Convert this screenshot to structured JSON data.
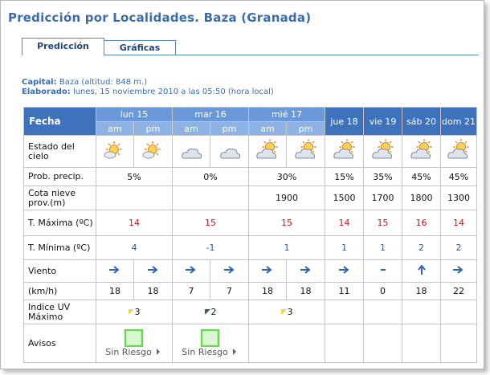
{
  "header": {
    "title": "Predicción por Localidades. Baza (Granada)",
    "tabs": [
      "Predicción",
      "Gráficas"
    ]
  },
  "info": {
    "capital_label": "Capital:",
    "capital": "Baza (altitud: 848 m.)",
    "elaborado_label": "Elaborado:",
    "elaborado": "lunes, 15 noviembre 2010 a las 05:50 (hora local)"
  },
  "table": {
    "corner": "Fecha",
    "days": [
      {
        "label": "lun 15",
        "periods": [
          "am",
          "pm"
        ]
      },
      {
        "label": "mar 16",
        "periods": [
          "am",
          "pm"
        ]
      },
      {
        "label": "mié 17",
        "periods": [
          "am",
          "pm"
        ]
      },
      {
        "label": "jue 18"
      },
      {
        "label": "vie 19"
      },
      {
        "label": "sáb 20"
      },
      {
        "label": "dom 21"
      }
    ],
    "rows": [
      {
        "label": "Estado del cielo"
      },
      {
        "label": "Prob. precip.",
        "cells": [
          "5%",
          "0%",
          "30%",
          "15%",
          "35%",
          "45%",
          "45%"
        ]
      },
      {
        "label": "Cota nieve prov.(m)",
        "cells": [
          null,
          null,
          1900,
          1500,
          1700,
          1800,
          1300
        ]
      },
      {
        "label": "T. Máxima (ºC)",
        "cells": [
          14,
          15,
          15,
          14,
          15,
          16,
          14
        ]
      },
      {
        "label": "T. Mínima (ºC)",
        "cells": [
          4,
          -1,
          1,
          1,
          1,
          2,
          2
        ]
      },
      {
        "label": "Viento"
      },
      {
        "label": "(km/h)",
        "cells": [
          18,
          18,
          7,
          7,
          18,
          18,
          11,
          0,
          18,
          22
        ]
      },
      {
        "label": "Indice UV Máximo",
        "cells": [
          3,
          2,
          3,
          null,
          null,
          null,
          null
        ]
      },
      {
        "label": "Avisos",
        "cells": [
          "Sin Riesgo",
          "Sin Riesgo",
          null,
          null,
          null,
          null,
          null
        ]
      }
    ]
  }
}
